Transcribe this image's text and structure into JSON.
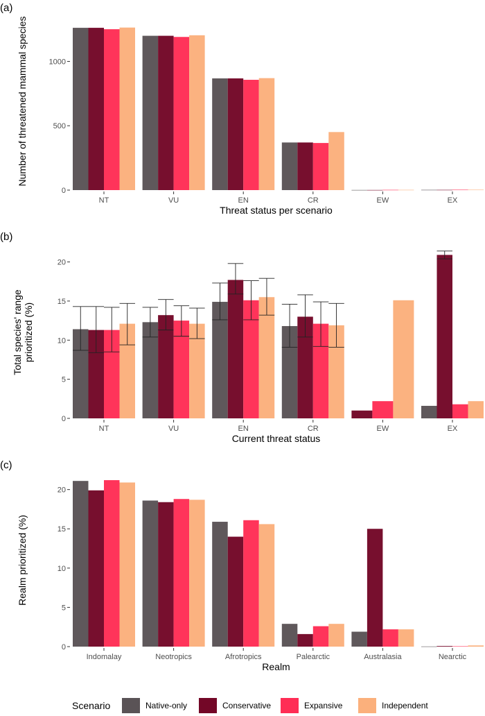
{
  "legend": {
    "title": "Scenario",
    "entries": [
      "Native-only",
      "Conservative",
      "Expansive",
      "Independent"
    ],
    "colors": [
      "#5a5356",
      "#730727",
      "#ff2d55",
      "#fbb07c"
    ]
  },
  "chart_data": [
    {
      "type": "bar",
      "panel_label": "(a)",
      "categories": [
        "NT",
        "VU",
        "EN",
        "CR",
        "EW",
        "EX"
      ],
      "xlabel": "Threat status per scenario",
      "ylabel": "Number of threatened mammal species",
      "ylim": [
        0,
        1380
      ],
      "yticks": [
        0,
        500,
        1000
      ],
      "series": [
        {
          "name": "Native-only",
          "values": [
            1261,
            1199,
            868,
            370,
            1,
            2
          ]
        },
        {
          "name": "Conservative",
          "values": [
            1261,
            1199,
            868,
            370,
            1,
            2
          ]
        },
        {
          "name": "Expansive",
          "values": [
            1250,
            1190,
            857,
            366,
            2,
            3
          ]
        },
        {
          "name": "Independent",
          "values": [
            1263,
            1203,
            870,
            451,
            2,
            3
          ]
        }
      ]
    },
    {
      "type": "bar",
      "panel_label": "(b)",
      "categories": [
        "NT",
        "VU",
        "EN",
        "CR",
        "EW",
        "EX"
      ],
      "xlabel": "Current threat status",
      "ylabel": [
        "Total species' range",
        "prioritized (%)"
      ],
      "ylim": [
        0,
        22
      ],
      "yticks": [
        0,
        5,
        10,
        15,
        20
      ],
      "series": [
        {
          "name": "Native-only",
          "values": [
            11.4,
            12.3,
            14.9,
            11.8,
            null,
            1.6
          ],
          "err_low": [
            8.7,
            10.4,
            12.6,
            9.1,
            null,
            null
          ],
          "err_high": [
            14.3,
            14.2,
            17.3,
            14.6,
            null,
            null
          ]
        },
        {
          "name": "Conservative",
          "values": [
            11.3,
            13.2,
            17.7,
            13.0,
            1.0,
            20.9
          ],
          "err_low": [
            8.4,
            11.3,
            15.9,
            10.4,
            null,
            20.4
          ],
          "err_high": [
            14.3,
            15.2,
            19.8,
            15.8,
            null,
            21.4
          ]
        },
        {
          "name": "Expansive",
          "values": [
            11.3,
            12.5,
            15.1,
            12.1,
            2.2,
            1.8
          ],
          "err_low": [
            8.5,
            10.5,
            12.6,
            9.2,
            null,
            null
          ],
          "err_high": [
            14.2,
            14.4,
            17.6,
            14.9,
            null,
            null
          ]
        },
        {
          "name": "Independent",
          "values": [
            12.1,
            12.1,
            15.5,
            11.9,
            15.1,
            2.2
          ],
          "err_low": [
            9.4,
            10.2,
            13.2,
            9.1,
            null,
            null
          ],
          "err_high": [
            14.7,
            14.1,
            17.9,
            14.7,
            null,
            null
          ]
        }
      ]
    },
    {
      "type": "bar",
      "panel_label": "(c)",
      "categories": [
        "Indomalay",
        "Neotropics",
        "Afrotropics",
        "Palearctic",
        "Australasia",
        "Nearctic"
      ],
      "xlabel": "Realm",
      "ylabel": "Realm prioritized (%)",
      "ylim": [
        0,
        22
      ],
      "yticks": [
        0,
        5,
        10,
        15,
        20
      ],
      "series": [
        {
          "name": "Native-only",
          "values": [
            21.1,
            18.6,
            15.9,
            2.9,
            1.9,
            0.02
          ]
        },
        {
          "name": "Conservative",
          "values": [
            19.9,
            18.4,
            14.0,
            1.6,
            15.0,
            0.08
          ]
        },
        {
          "name": "Expansive",
          "values": [
            21.2,
            18.8,
            16.1,
            2.6,
            2.2,
            0.05
          ]
        },
        {
          "name": "Independent",
          "values": [
            20.9,
            18.7,
            15.6,
            2.9,
            2.2,
            0.15
          ]
        }
      ]
    }
  ]
}
